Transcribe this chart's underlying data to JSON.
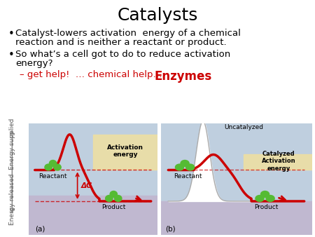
{
  "title": "Catalysts",
  "title_fontsize": 18,
  "bullet1_line1": "Catalyst-lowers activation  energy of a chemical",
  "bullet1_line2": "reaction and is neither a reactant or product.",
  "bullet2_line1": "So what’s a cell got to do to reduce activation",
  "bullet2_line2": "energy?",
  "sub_bullet": "– get help!  … chemical help…   ",
  "enzymes_text": "Enzymes",
  "enzymes_color": "#cc0000",
  "bullet_fontsize": 9.5,
  "sub_bullet_color": "#cc0000",
  "diagram_label_a": "(a)",
  "diagram_label_b": "(b)",
  "ylabel": "Energy released  Energy supplied",
  "activation_energy_text": "Activation\nenergy",
  "activation_energy_b_text": "Catalyzed\nActivation\nenergy",
  "uncatalyzed_text": "Uncatalyzed",
  "reactant_text": "Reactant",
  "product_text": "Product",
  "delta_g_text": "ΔG",
  "bg_color": "#ffffff",
  "diagram_bg_upper": "#bfcfdf",
  "diagram_bg_lower": "#c0b8d0",
  "activation_box_color": "#f0e0a0",
  "curve_color": "#cc0000",
  "dashed_color": "#cc0000",
  "node_color": "#55bb33",
  "ylabel_color": "#555555"
}
